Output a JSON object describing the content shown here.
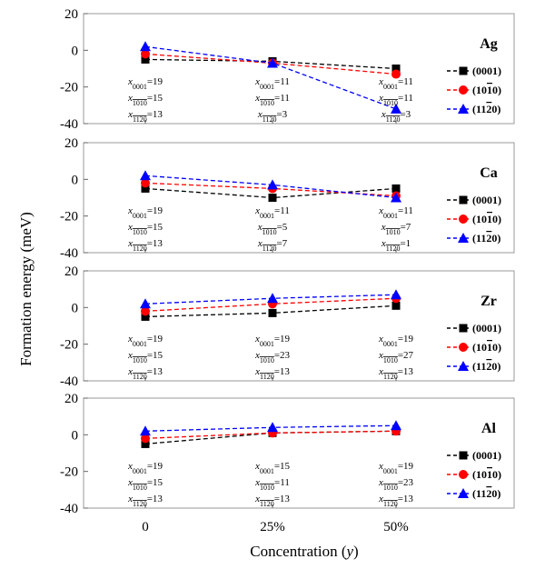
{
  "chart_data": {
    "type": "line",
    "xlabel_main": "Concentration (",
    "xlabel_var": "y",
    "xlabel_close": ")",
    "ylabel": "Formation energy (meV)",
    "categories": [
      "0",
      "25%",
      "50%"
    ],
    "ylim": [
      -40,
      20
    ],
    "yticks": [
      "20",
      "0",
      "-20",
      "-40"
    ],
    "legend": [
      {
        "label": "(0001)",
        "marker": "square",
        "color": "#000000"
      },
      {
        "label": "(1010)",
        "marker": "circle",
        "color": "#ff0000"
      },
      {
        "label": "(1120)",
        "marker": "triangle",
        "color": "#0000ff"
      }
    ],
    "panels": [
      {
        "element": "Ag",
        "series": [
          {
            "name": "(0001)",
            "values": [
              -5,
              -6,
              -10
            ]
          },
          {
            "name": "(1010)",
            "values": [
              -2,
              -7,
              -13
            ]
          },
          {
            "name": "(1120)",
            "values": [
              2,
              -7,
              -32
            ]
          }
        ],
        "annotations": [
          [
            "19",
            "15",
            "13"
          ],
          [
            "11",
            "11",
            "3"
          ],
          [
            "11",
            "11",
            "3"
          ]
        ]
      },
      {
        "element": "Ca",
        "series": [
          {
            "name": "(0001)",
            "values": [
              -5,
              -10,
              -5
            ]
          },
          {
            "name": "(1010)",
            "values": [
              -2,
              -5,
              -9
            ]
          },
          {
            "name": "(1120)",
            "values": [
              2,
              -3,
              -10
            ]
          }
        ],
        "annotations": [
          [
            "19",
            "15",
            "13"
          ],
          [
            "11",
            "5",
            "7"
          ],
          [
            "11",
            "7",
            "1"
          ]
        ]
      },
      {
        "element": "Zr",
        "series": [
          {
            "name": "(0001)",
            "values": [
              -5,
              -3,
              1
            ]
          },
          {
            "name": "(1010)",
            "values": [
              -2,
              2,
              5
            ]
          },
          {
            "name": "(1120)",
            "values": [
              2,
              5,
              7
            ]
          }
        ],
        "annotations": [
          [
            "19",
            "15",
            "13"
          ],
          [
            "19",
            "23",
            "13"
          ],
          [
            "19",
            "27",
            "13"
          ]
        ]
      },
      {
        "element": "Al",
        "series": [
          {
            "name": "(0001)",
            "values": [
              -5,
              1,
              2
            ]
          },
          {
            "name": "(1010)",
            "values": [
              -2,
              1,
              2
            ]
          },
          {
            "name": "(1120)",
            "values": [
              2,
              4,
              5
            ]
          }
        ],
        "annotations": [
          [
            "19",
            "15",
            "13"
          ],
          [
            "15",
            "11",
            "13"
          ],
          [
            "19",
            "23",
            "13"
          ]
        ]
      }
    ]
  }
}
